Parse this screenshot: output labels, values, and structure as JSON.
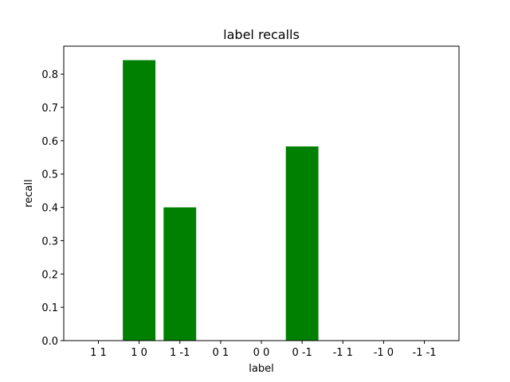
{
  "chart_data": {
    "type": "bar",
    "title": "label recalls",
    "xlabel": "label",
    "ylabel": "recall",
    "categories": [
      "1 1",
      "1 0",
      "1 -1",
      "0 1",
      "0 0",
      "0 -1",
      "-1 1",
      "-1 0",
      "-1 -1"
    ],
    "values": [
      0,
      0.842,
      0.4,
      0,
      0,
      0.583,
      0,
      0,
      0
    ],
    "ylim": [
      0,
      0.884
    ],
    "yticks": [
      0.0,
      0.1,
      0.2,
      0.3,
      0.4,
      0.5,
      0.6,
      0.7,
      0.8
    ],
    "ytick_labels": [
      "0.0",
      "0.1",
      "0.2",
      "0.3",
      "0.4",
      "0.5",
      "0.6",
      "0.7",
      "0.8"
    ],
    "bar_color": "#008000",
    "grid": false,
    "legend": "none"
  }
}
